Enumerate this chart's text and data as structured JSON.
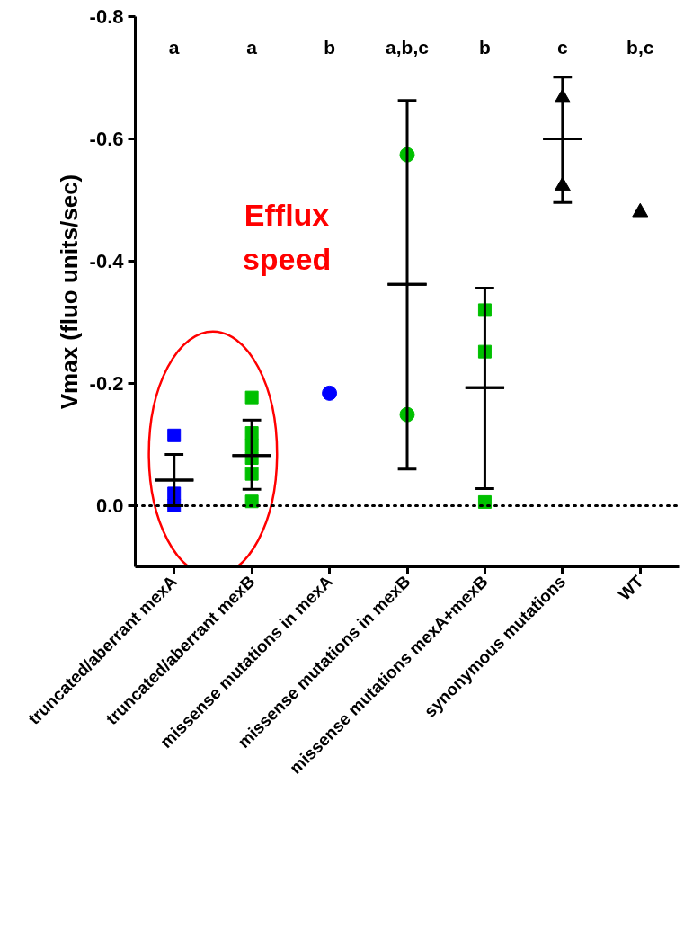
{
  "chart_data": {
    "type": "scatter",
    "categories": [
      "truncated/aberrant mexA",
      "truncated/aberrant mexB",
      "missense mutations in mexA",
      "missense mutations in mexB",
      "missense mutations mexA+mexB",
      "synonymous mutations",
      "WT"
    ],
    "ylabel": "Vmax (fluo units/sec)",
    "ylim": [
      0.1,
      -0.8
    ],
    "yticks": [
      -0.8,
      -0.6,
      -0.4,
      -0.2,
      {
        "value": 0,
        "label": "0.0"
      }
    ],
    "grid": false,
    "series": [
      {
        "color": "#0000ff",
        "marker": "square",
        "x": [
          "truncated/aberrant mexA",
          "truncated/aberrant mexA",
          "truncated/aberrant mexA"
        ],
        "values": [
          -0.115,
          -0.02,
          0.0
        ]
      },
      {
        "color": "#00c000",
        "marker": "square",
        "x": [
          "truncated/aberrant mexB",
          "truncated/aberrant mexB",
          "truncated/aberrant mexB",
          "truncated/aberrant mexB",
          "truncated/aberrant mexB",
          "truncated/aberrant mexB",
          "truncated/aberrant mexB"
        ],
        "values": [
          -0.177,
          -0.119,
          -0.099,
          -0.078,
          -0.052,
          null,
          -0.007
        ]
      },
      {
        "color": "#0000ff",
        "marker": "circle",
        "x": [
          "missense mutations in mexA"
        ],
        "values": [
          -0.184
        ]
      },
      {
        "color": "#00c000",
        "marker": "circle",
        "x": [
          "missense mutations in mexB",
          "missense mutations in mexB"
        ],
        "values": [
          -0.574,
          -0.149
        ]
      },
      {
        "color": "#00c000",
        "marker": "square",
        "x": [
          "missense mutations mexA+mexB",
          "missense mutations mexA+mexB",
          "missense mutations mexA+mexB"
        ],
        "values": [
          -0.32,
          -0.252,
          -0.006
        ]
      },
      {
        "color": "#000000",
        "marker": "triangle",
        "x": [
          "synonymous mutations",
          "synonymous mutations"
        ],
        "values": [
          -0.667,
          -0.523
        ]
      },
      {
        "color": "#000000",
        "marker": "triangle",
        "x": [
          "WT"
        ],
        "values": [
          -0.48
        ]
      },
      {
        "type": "box",
        "color": "#000000",
        "boxes": [
          {
            "low": -0.084,
            "q1": -0.042,
            "median": -0.042,
            "q3": -0.042,
            "high": 0.0
          },
          {
            "low": -0.14,
            "q1": -0.082,
            "median": -0.082,
            "q3": -0.082,
            "high": -0.027
          },
          null,
          {
            "low": -0.663,
            "q1": -0.362,
            "median": -0.362,
            "q3": -0.362,
            "high": -0.06
          },
          {
            "low": -0.356,
            "q1": -0.193,
            "median": -0.193,
            "q3": -0.193,
            "high": -0.028
          },
          {
            "low": -0.701,
            "q1": -0.6,
            "median": -0.6,
            "q3": -0.6,
            "high": -0.496
          },
          null
        ]
      }
    ],
    "ref_lines": [
      {
        "axis": "y",
        "value": 0,
        "color": "#000000",
        "line_style": "dotted"
      }
    ],
    "annotations": [
      "a",
      "a",
      "b",
      "a,b,c",
      "b",
      "c",
      "b,c",
      "Efflux\nspeed"
    ]
  }
}
